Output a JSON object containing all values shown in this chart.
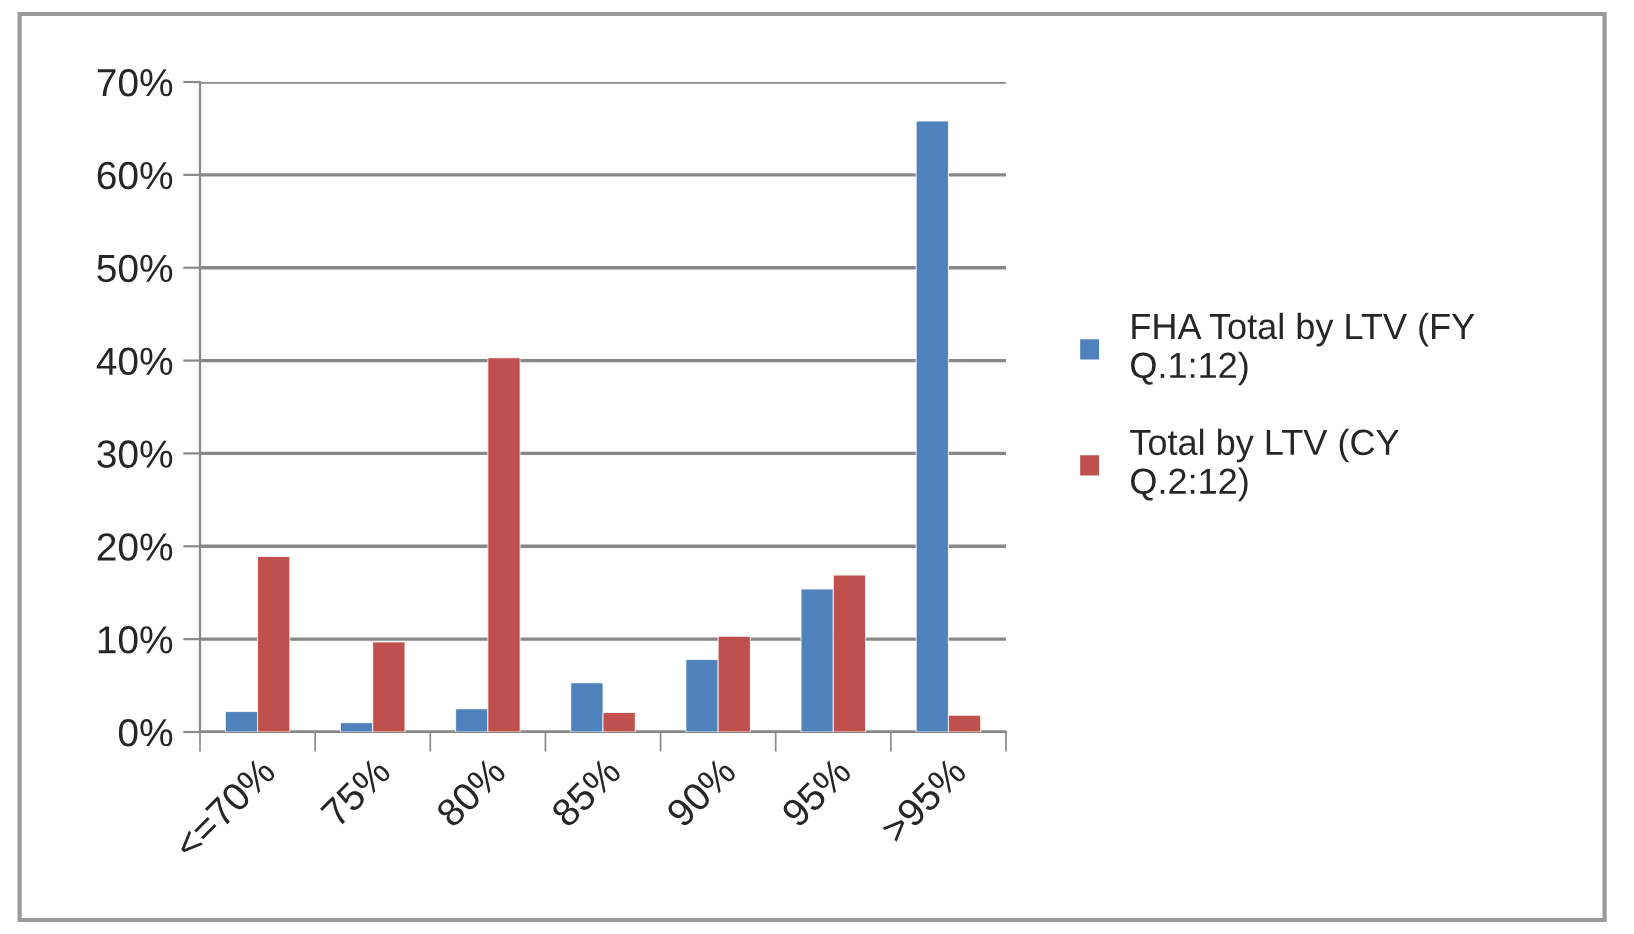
{
  "chart_data": {
    "type": "bar",
    "categories": [
      "<=70%",
      "75%",
      "80%",
      "85%",
      "90%",
      "95%",
      ">95%"
    ],
    "series": [
      {
        "name": "FHA Total by LTV (FY\nQ.1:12)",
        "color": "#4f81bd",
        "values": [
          2.2,
          1.0,
          2.5,
          5.3,
          7.8,
          15.4,
          65.8
        ]
      },
      {
        "name": "Total by LTV (CY\nQ.2:12)",
        "color": "#c0504d",
        "values": [
          18.9,
          9.7,
          40.3,
          2.1,
          10.3,
          16.9,
          1.8
        ]
      }
    ],
    "ylim": [
      0,
      70
    ],
    "yticks": [
      {
        "value": 0,
        "label": "0%"
      },
      {
        "value": 10,
        "label": "10%"
      },
      {
        "value": 20,
        "label": "20%"
      },
      {
        "value": 30,
        "label": "30%"
      },
      {
        "value": 40,
        "label": "40%"
      },
      {
        "value": 50,
        "label": "50%"
      },
      {
        "value": 60,
        "label": "60%"
      },
      {
        "value": 70,
        "label": "70%"
      }
    ],
    "grid": "y",
    "legend": "right"
  }
}
